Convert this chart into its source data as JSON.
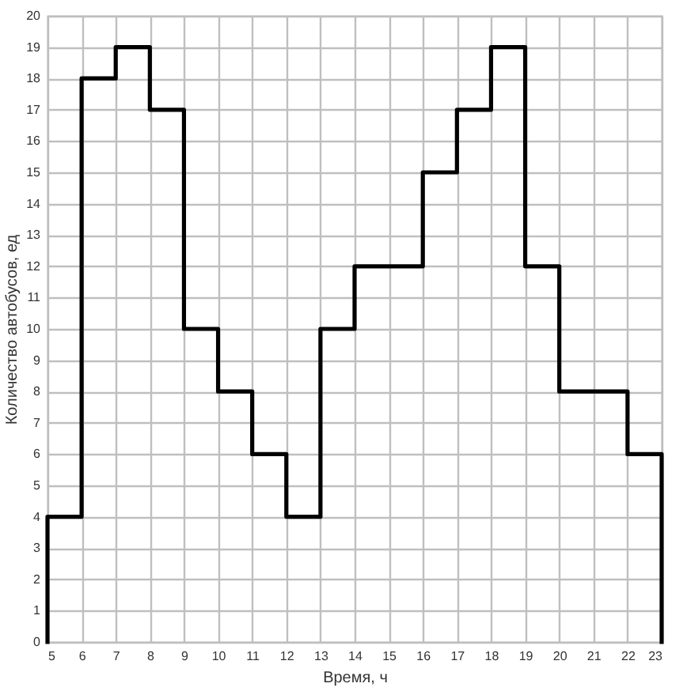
{
  "chart_data": {
    "type": "step",
    "xlabel": "Время, ч",
    "ylabel": "Количество автобусов, ед",
    "x": [
      5,
      5,
      6,
      7,
      8,
      9,
      10,
      11,
      12,
      13,
      14,
      15,
      16,
      17,
      18,
      19,
      20,
      21,
      22,
      23,
      23
    ],
    "series": [
      {
        "color": "#000000",
        "values": [
          0,
          4,
          18,
          19,
          17,
          10,
          8,
          6,
          4,
          10,
          12,
          12,
          15,
          17,
          19,
          12,
          8,
          8,
          6,
          6,
          0
        ]
      }
    ],
    "xlim": [
      5,
      23
    ],
    "ylim": [
      0,
      20
    ],
    "xticks": [
      5,
      6,
      7,
      8,
      9,
      10,
      11,
      12,
      13,
      14,
      15,
      16,
      17,
      18,
      19,
      20,
      21,
      22,
      23
    ],
    "yticks": [
      0,
      1,
      2,
      3,
      4,
      5,
      6,
      7,
      8,
      9,
      10,
      11,
      12,
      13,
      14,
      15,
      16,
      17,
      18,
      19,
      20
    ],
    "grid": true
  }
}
